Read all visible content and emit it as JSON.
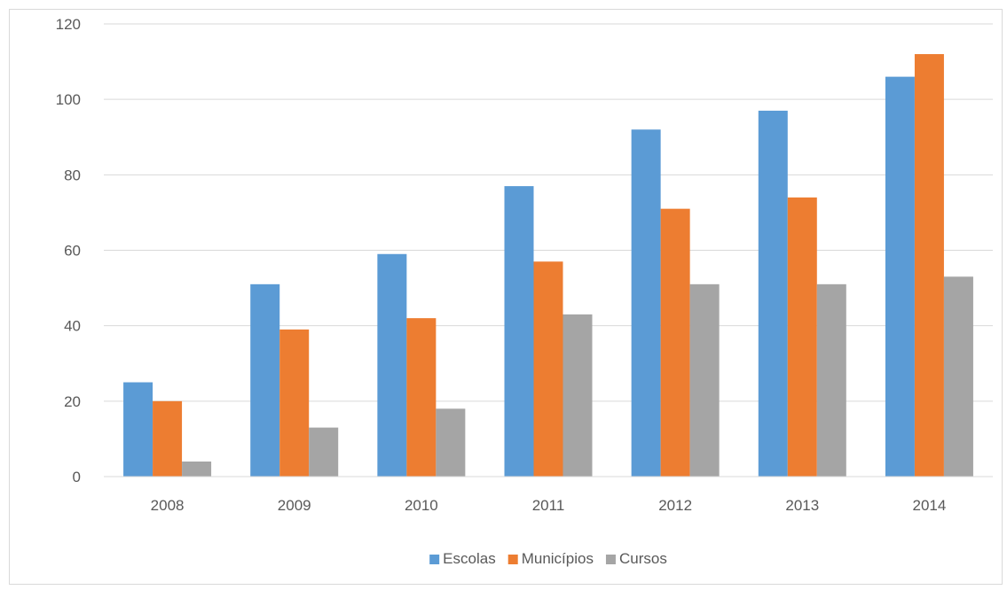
{
  "chart_data": {
    "type": "bar",
    "title": "",
    "xlabel": "",
    "ylabel": "",
    "categories": [
      "2008",
      "2009",
      "2010",
      "2011",
      "2012",
      "2013",
      "2014"
    ],
    "series": [
      {
        "name": "Escolas",
        "color": "#5b9bd5",
        "values": [
          25,
          51,
          59,
          77,
          92,
          97,
          106
        ]
      },
      {
        "name": "Municípios",
        "color": "#ed7d31",
        "values": [
          20,
          39,
          42,
          57,
          71,
          74,
          112
        ]
      },
      {
        "name": "Cursos",
        "color": "#a5a5a5",
        "values": [
          4,
          13,
          18,
          43,
          51,
          51,
          53
        ]
      }
    ],
    "ylim": [
      0,
      120
    ],
    "yticks": [
      "0",
      "20",
      "40",
      "60",
      "80",
      "100",
      "120"
    ],
    "grid": true,
    "legend": "bottom"
  }
}
